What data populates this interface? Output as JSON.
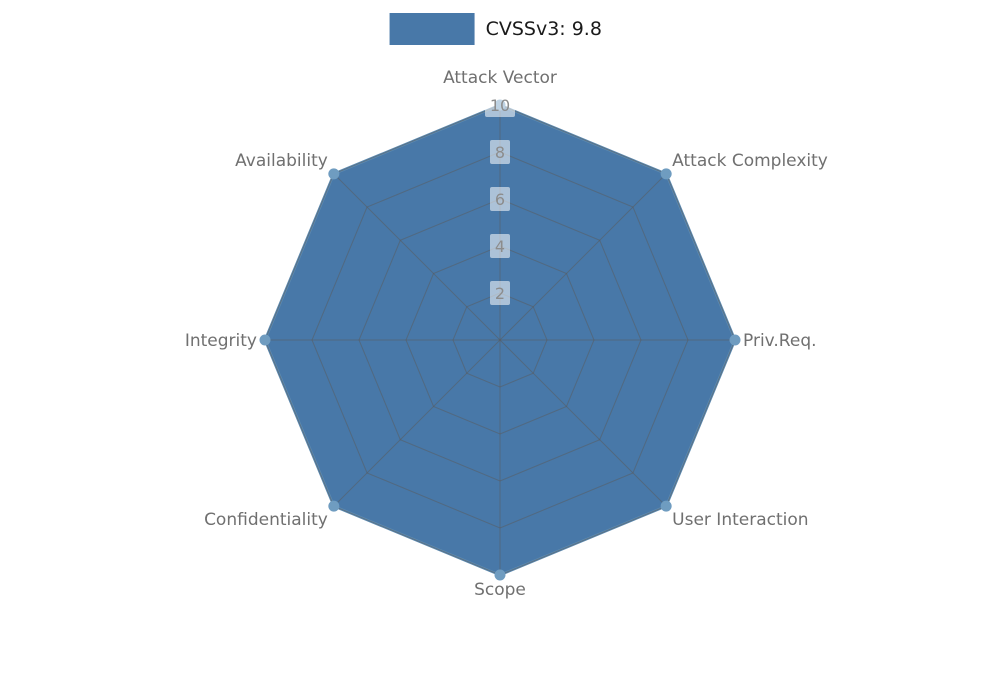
{
  "legend": {
    "label": "CVSSv3: 9.8",
    "color": "#4878a8"
  },
  "chart_data": {
    "type": "radar",
    "title": "",
    "categories": [
      "Attack Vector",
      "Attack Complexity",
      "Priv.Req.",
      "User Interaction",
      "Scope",
      "Confidentiality",
      "Integrity",
      "Availability"
    ],
    "series": [
      {
        "name": "CVSSv3: 9.8",
        "values": [
          10,
          10,
          10,
          10,
          10,
          10,
          10,
          10
        ]
      }
    ],
    "ticks": [
      2,
      4,
      6,
      8,
      10
    ],
    "range": [
      0,
      10
    ],
    "grid": true,
    "legend_position": "top-center",
    "colors": {
      "fill": "#4878a8",
      "edge": "#5b8ab2",
      "marker": "#6f9cc0",
      "grid_line": "#5a5a5a",
      "axis_label": "#707070",
      "tick_label": "#8c8c8c"
    }
  }
}
